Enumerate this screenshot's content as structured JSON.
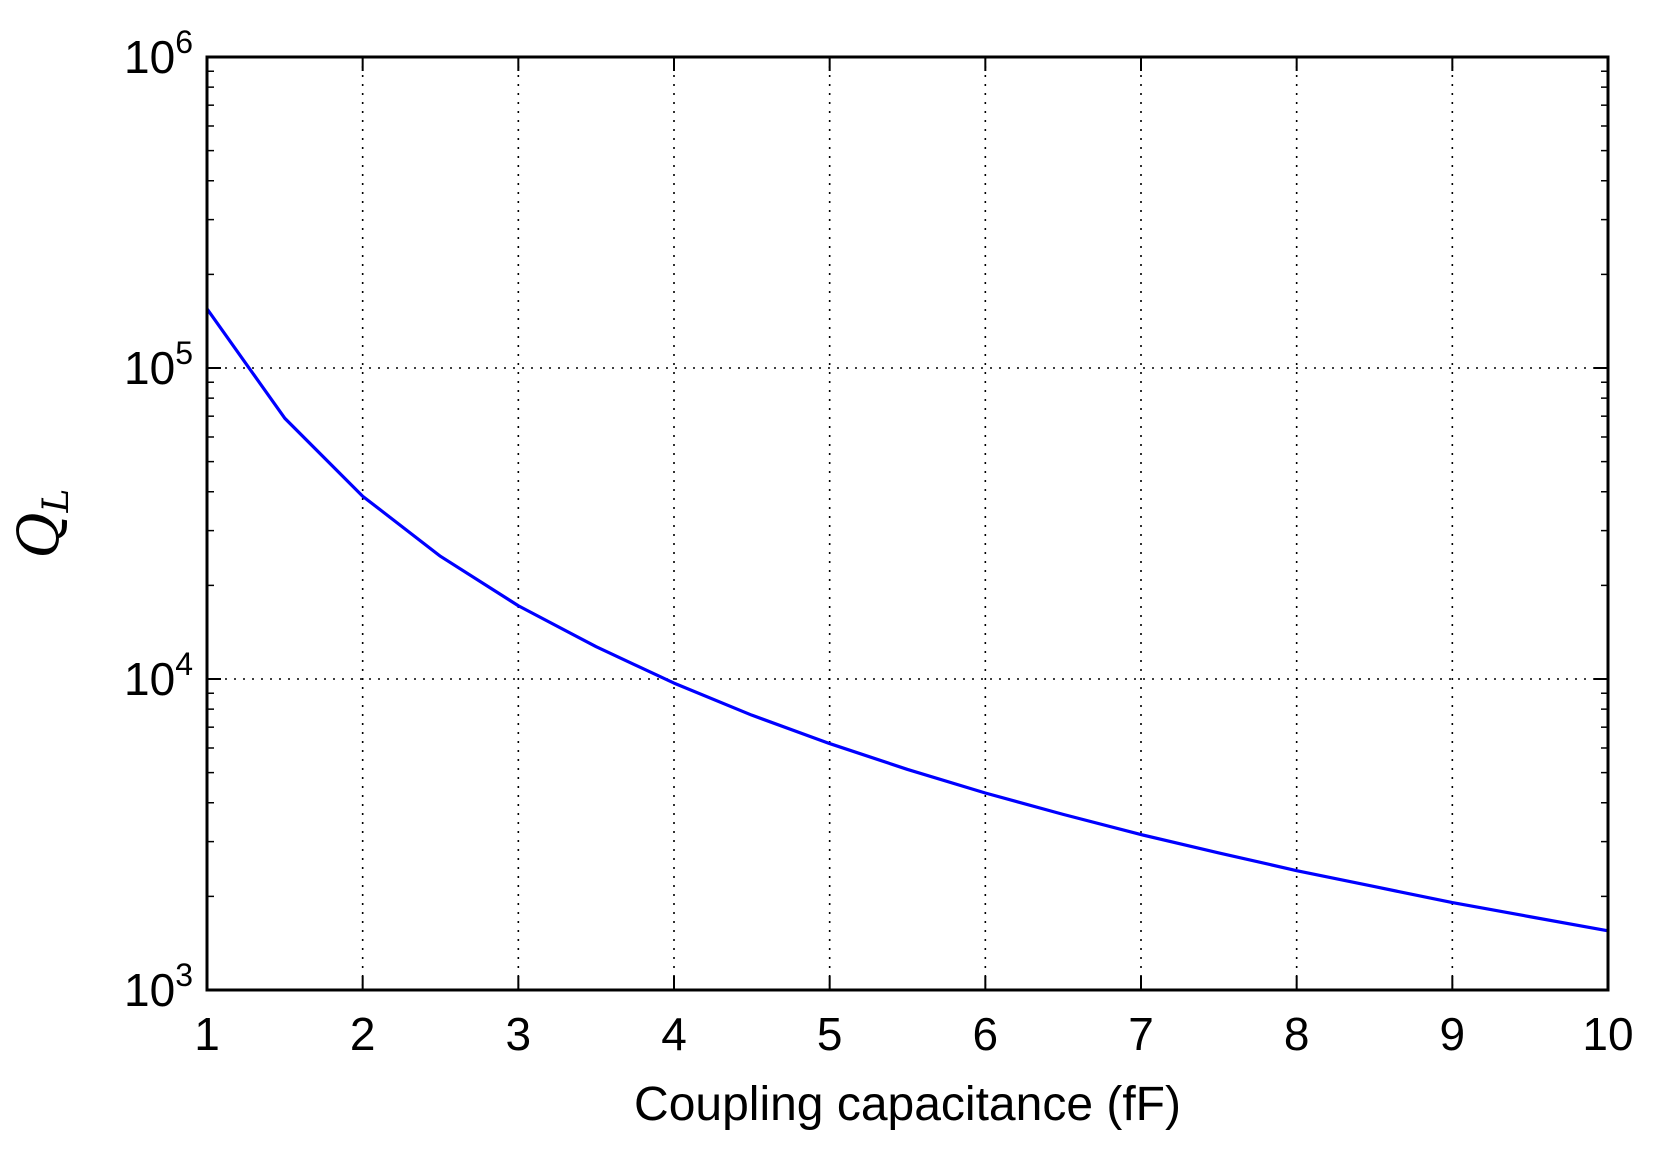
{
  "chart_data": {
    "type": "line",
    "title": "",
    "xlabel": "Coupling capacitance (fF)",
    "ylabel": "Q",
    "ylabel_subscript": "L",
    "xlim": [
      1,
      10
    ],
    "ylim": [
      1000,
      1000000
    ],
    "y_scale": "log",
    "grid": true,
    "grid_style": "dotted",
    "x_ticks": [
      1,
      2,
      3,
      4,
      5,
      6,
      7,
      8,
      9,
      10
    ],
    "x_tick_labels": [
      "1",
      "2",
      "3",
      "4",
      "5",
      "6",
      "7",
      "8",
      "9",
      "10"
    ],
    "y_ticks": [
      {
        "value": 1000,
        "base": "10",
        "exp": "3"
      },
      {
        "value": 10000,
        "base": "10",
        "exp": "4"
      },
      {
        "value": 100000,
        "base": "10",
        "exp": "5"
      },
      {
        "value": 1000000,
        "base": "10",
        "exp": "6"
      }
    ],
    "series": [
      {
        "color": "#0000ff",
        "x": [
          1,
          1.5,
          2,
          2.5,
          3,
          3.5,
          4,
          4.5,
          5,
          5.5,
          6,
          6.5,
          7,
          7.5,
          8,
          8.5,
          9,
          9.5,
          10
        ],
        "y": [
          155000,
          68900,
          38700,
          24800,
          17200,
          12700,
          9700,
          7650,
          6200,
          5120,
          4300,
          3670,
          3160,
          2760,
          2420,
          2150,
          1910,
          1720,
          1550
        ]
      }
    ]
  }
}
